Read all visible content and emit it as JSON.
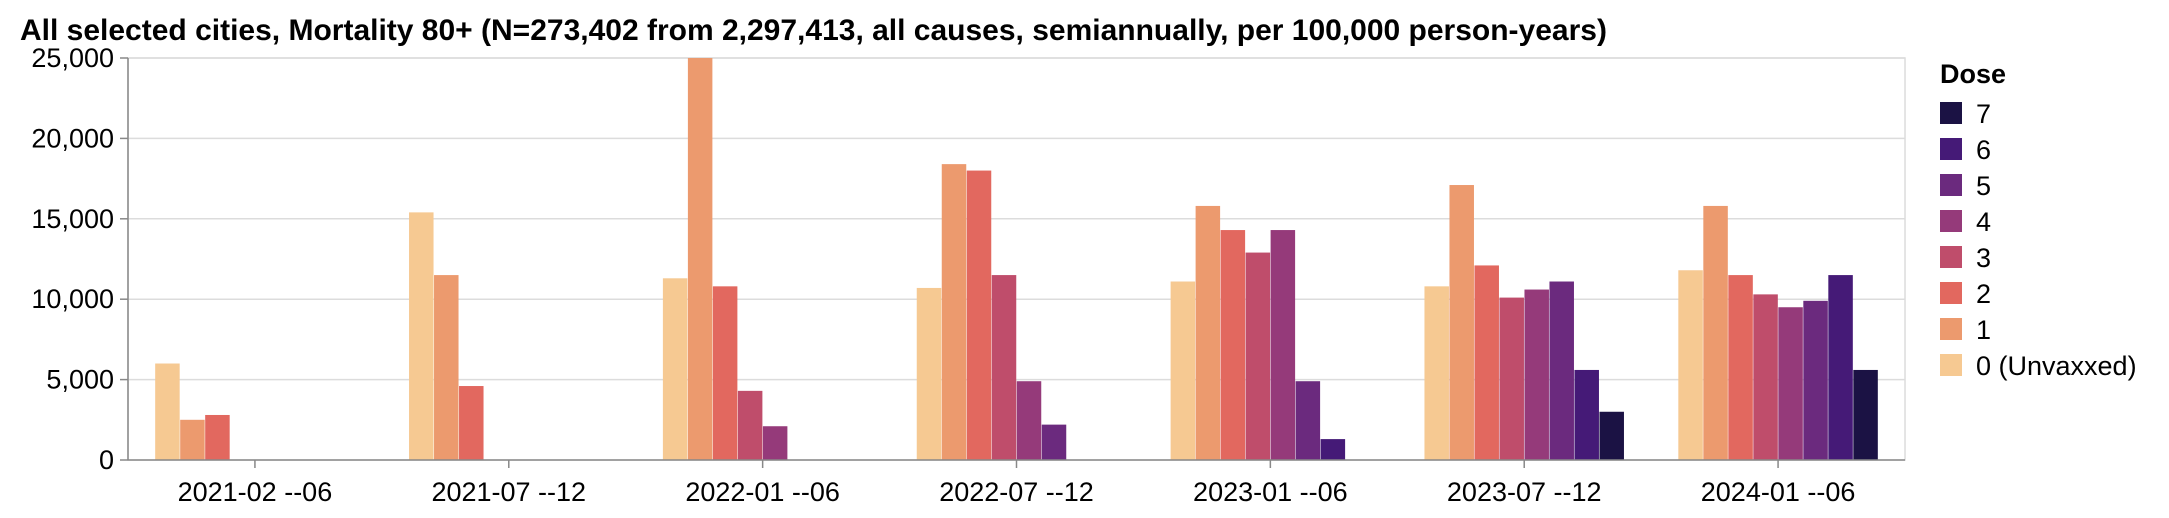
{
  "chart_data": {
    "type": "bar",
    "title": "All selected cities, Mortality 80+ (N=273,402 from 2,297,413, all causes, semiannually, per 100,000 person-years)",
    "xlabel": "",
    "ylabel": "",
    "ylim": [
      0,
      25000
    ],
    "yticks": [
      0,
      5000,
      10000,
      15000,
      20000,
      25000
    ],
    "ytick_labels": [
      "0",
      "5,000",
      "10,000",
      "15,000",
      "20,000",
      "25,000"
    ],
    "grid": true,
    "legend_title": "Dose",
    "legend_position": "right",
    "categories": [
      "2021-02 --06",
      "2021-07 --12",
      "2022-01 --06",
      "2022-07 --12",
      "2023-01 --06",
      "2023-07 --12",
      "2024-01 --06"
    ],
    "series": [
      {
        "name": "0 (Unvaxxed)",
        "color": "#f6c992",
        "values": [
          6000,
          15400,
          11300,
          10700,
          11100,
          10800,
          11800
        ]
      },
      {
        "name": "1",
        "color": "#ec9a6e",
        "values": [
          2500,
          11500,
          25000,
          18400,
          15800,
          17100,
          15800
        ]
      },
      {
        "name": "2",
        "color": "#e2685f",
        "values": [
          2800,
          4600,
          10800,
          18000,
          14300,
          12100,
          11500
        ]
      },
      {
        "name": "3",
        "color": "#bf4d6b",
        "values": [
          null,
          null,
          4300,
          11500,
          12900,
          10100,
          10300
        ]
      },
      {
        "name": "4",
        "color": "#953a7a",
        "values": [
          null,
          null,
          2100,
          4900,
          14300,
          10600,
          9500
        ]
      },
      {
        "name": "5",
        "color": "#6b2a7e",
        "values": [
          null,
          null,
          null,
          2200,
          4900,
          11100,
          9900
        ]
      },
      {
        "name": "6",
        "color": "#451a77",
        "values": [
          null,
          null,
          null,
          null,
          1300,
          5600,
          11500
        ]
      },
      {
        "name": "7",
        "color": "#1b1244",
        "values": [
          null,
          null,
          null,
          null,
          null,
          3000,
          5600
        ]
      }
    ]
  }
}
